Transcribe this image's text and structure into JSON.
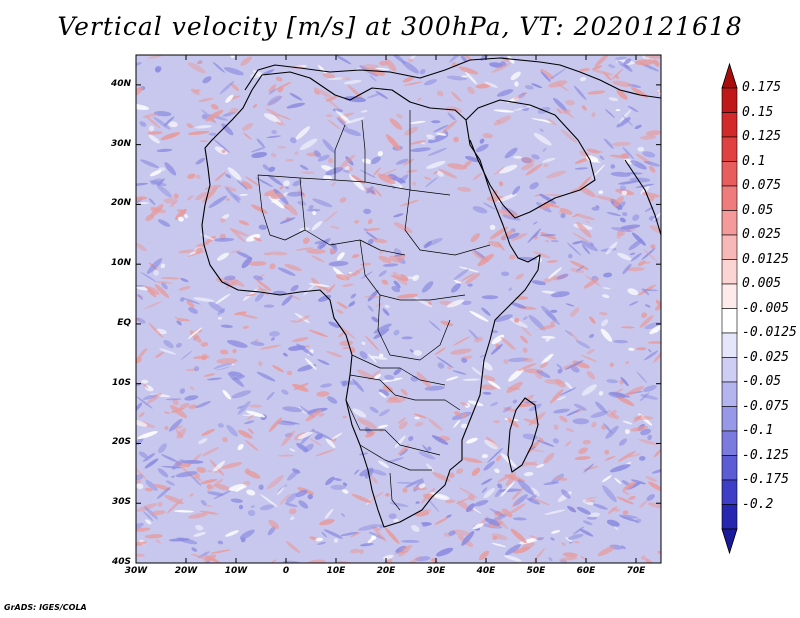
{
  "title": "Vertical velocity [m/s] at 300hPa, VT: 2020121618",
  "footer": "GrADS: IGES/COLA",
  "map": {
    "lon_range": [
      -30,
      75
    ],
    "lat_range": [
      -40,
      45
    ],
    "lat_ticks": [
      {
        "value": 40,
        "label": "40N"
      },
      {
        "value": 30,
        "label": "30N"
      },
      {
        "value": 20,
        "label": "20N"
      },
      {
        "value": 10,
        "label": "10N"
      },
      {
        "value": 0,
        "label": "EQ"
      },
      {
        "value": -10,
        "label": "10S"
      },
      {
        "value": -20,
        "label": "20S"
      },
      {
        "value": -30,
        "label": "30S"
      },
      {
        "value": -40,
        "label": "40S"
      }
    ],
    "lon_ticks": [
      {
        "value": -30,
        "label": "30W"
      },
      {
        "value": -20,
        "label": "20W"
      },
      {
        "value": -10,
        "label": "10W"
      },
      {
        "value": 0,
        "label": "0"
      },
      {
        "value": 10,
        "label": "10E"
      },
      {
        "value": 20,
        "label": "20E"
      },
      {
        "value": 30,
        "label": "30E"
      },
      {
        "value": 40,
        "label": "40E"
      },
      {
        "value": 50,
        "label": "50E"
      },
      {
        "value": 60,
        "label": "60E"
      },
      {
        "value": 70,
        "label": "70E"
      }
    ]
  },
  "colorbar": {
    "levels": [
      {
        "label": "0.175",
        "color": "#c01818"
      },
      {
        "label": "0.15",
        "color": "#d22a2a"
      },
      {
        "label": "0.125",
        "color": "#e04242"
      },
      {
        "label": "0.1",
        "color": "#e85e5e"
      },
      {
        "label": "0.075",
        "color": "#ef7c7c"
      },
      {
        "label": "0.05",
        "color": "#f49a9a"
      },
      {
        "label": "0.025",
        "color": "#f8b8b8"
      },
      {
        "label": "0.0125",
        "color": "#fbd4d4"
      },
      {
        "label": "0.005",
        "color": "#fdeaea"
      },
      {
        "label": "-0.005",
        "color": "#ffffff"
      },
      {
        "label": "-0.0125",
        "color": "#e6e6fa"
      },
      {
        "label": "-0.025",
        "color": "#ceceF5"
      },
      {
        "label": "-0.05",
        "color": "#b4b4ef"
      },
      {
        "label": "-0.075",
        "color": "#9898e8"
      },
      {
        "label": "-0.1",
        "color": "#7a7adf"
      },
      {
        "label": "-0.125",
        "color": "#5c5cd4"
      },
      {
        "label": "-0.175",
        "color": "#3e3ec6"
      },
      {
        "label": "-0.2",
        "color": "#2626b0"
      }
    ],
    "top_arrow_color": "#a80d0d",
    "bottom_arrow_color": "#1a1a9a"
  },
  "palette": {
    "background": "#c8c8ee",
    "positive": "#e89a9a",
    "negative": "#8a8ae0",
    "coastline": "#000000"
  }
}
